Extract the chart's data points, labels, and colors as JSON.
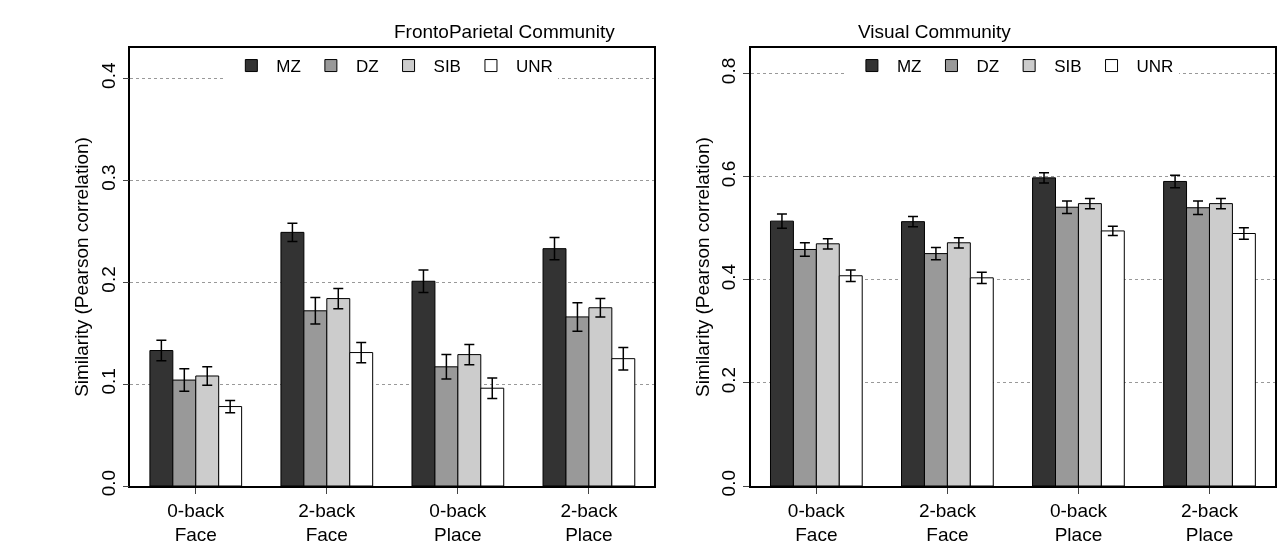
{
  "chart_data": [
    {
      "type": "bar",
      "title": "FrontoParietal Community",
      "ylabel": "Similarity (Pearson correlation)",
      "categories": [
        "0-back\nFace",
        "2-back\nFace",
        "0-back\nPlace",
        "2-back\nPlace"
      ],
      "series": [
        {
          "name": "MZ",
          "color": "#333333",
          "values": [
            0.133,
            0.249,
            0.201,
            0.233
          ],
          "errors": [
            0.01,
            0.009,
            0.011,
            0.011
          ]
        },
        {
          "name": "DZ",
          "color": "#999999",
          "values": [
            0.104,
            0.172,
            0.117,
            0.166
          ],
          "errors": [
            0.011,
            0.013,
            0.012,
            0.014
          ]
        },
        {
          "name": "SIB",
          "color": "#cccccc",
          "values": [
            0.108,
            0.184,
            0.129,
            0.175
          ],
          "errors": [
            0.009,
            0.01,
            0.01,
            0.009
          ]
        },
        {
          "name": "UNR",
          "color": "#ffffff",
          "values": [
            0.078,
            0.131,
            0.096,
            0.125
          ],
          "errors": [
            0.006,
            0.01,
            0.01,
            0.011
          ]
        }
      ],
      "ylim": [
        0,
        0.43
      ],
      "yticks": [
        {
          "value": 0,
          "label": "0.0"
        },
        0.1,
        0.2,
        0.3,
        0.4
      ],
      "grid": "y",
      "legend": "top"
    },
    {
      "type": "bar",
      "title": "Visual Community",
      "ylabel": "Similarity (Pearson correlation)",
      "categories": [
        "0-back\nFace",
        "2-back\nFace",
        "0-back\nPlace",
        "2-back\nPlace"
      ],
      "series": [
        {
          "name": "MZ",
          "color": "#333333",
          "values": [
            0.514,
            0.513,
            0.598,
            0.591
          ],
          "errors": [
            0.014,
            0.01,
            0.01,
            0.012
          ]
        },
        {
          "name": "DZ",
          "color": "#999999",
          "values": [
            0.459,
            0.451,
            0.541,
            0.54
          ],
          "errors": [
            0.013,
            0.012,
            0.012,
            0.013
          ]
        },
        {
          "name": "SIB",
          "color": "#cccccc",
          "values": [
            0.47,
            0.472,
            0.548,
            0.548
          ],
          "errors": [
            0.01,
            0.01,
            0.01,
            0.01
          ]
        },
        {
          "name": "UNR",
          "color": "#ffffff",
          "values": [
            0.408,
            0.404,
            0.495,
            0.49
          ],
          "errors": [
            0.011,
            0.011,
            0.009,
            0.011
          ]
        }
      ],
      "ylim": [
        0,
        0.85
      ],
      "yticks": [
        {
          "value": 0,
          "label": "0.0"
        },
        0.2,
        0.4,
        0.6,
        0.8
      ],
      "grid": "y",
      "legend": "top"
    }
  ]
}
